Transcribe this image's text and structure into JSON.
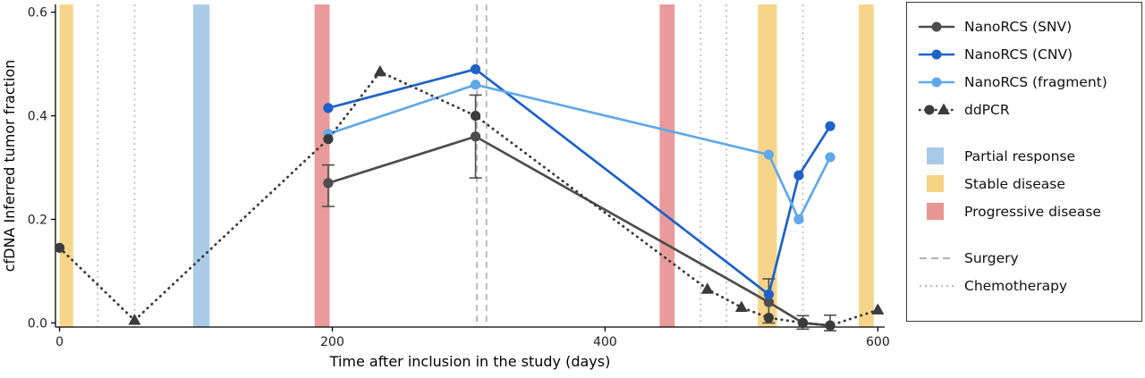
{
  "chart_data": {
    "type": "line",
    "title": "",
    "xlabel": "Time after inclusion in the study (days)",
    "ylabel": "cfDNA Inferred tumor fraction",
    "xlim": [
      -3,
      605
    ],
    "ylim": [
      -0.008,
      0.615
    ],
    "xticks": [
      0,
      200,
      400,
      600
    ],
    "xtick_labels": [
      "0",
      "200",
      "400",
      "600"
    ],
    "yticks": [
      0,
      0.2,
      0.4,
      0.6
    ],
    "ytick_labels": [
      "0.0",
      "0.2",
      "0.4",
      "0.6"
    ],
    "grid": false,
    "legend_position": "right",
    "series": [
      {
        "name": "NanoRCS (SNV)",
        "color": "#4d4d4d",
        "style": "solid",
        "marker": "circle",
        "points": [
          {
            "x": 197,
            "y": 0.27,
            "lo": 0.225,
            "hi": 0.305
          },
          {
            "x": 305,
            "y": 0.36,
            "lo": 0.28,
            "hi": 0.44
          },
          {
            "x": 520,
            "y": 0.04,
            "lo": 0.0,
            "hi": 0.085
          },
          {
            "x": 545,
            "y": 0.0,
            "lo": -0.012,
            "hi": 0.014
          },
          {
            "x": 565,
            "y": -0.005,
            "lo": -0.015,
            "hi": 0.015
          }
        ]
      },
      {
        "name": "NanoRCS (CNV)",
        "color": "#1e62c8",
        "style": "solid",
        "marker": "circle",
        "points": [
          {
            "x": 197,
            "y": 0.415
          },
          {
            "x": 305,
            "y": 0.49
          },
          {
            "x": 520,
            "y": 0.055
          },
          {
            "x": 542,
            "y": 0.285
          },
          {
            "x": 565,
            "y": 0.38
          }
        ]
      },
      {
        "name": "NanoRCS (fragment)",
        "color": "#5fa8ea",
        "style": "solid",
        "marker": "circle",
        "points": [
          {
            "x": 197,
            "y": 0.365
          },
          {
            "x": 305,
            "y": 0.46
          },
          {
            "x": 520,
            "y": 0.325
          },
          {
            "x": 542,
            "y": 0.2
          },
          {
            "x": 565,
            "y": 0.32
          }
        ]
      },
      {
        "name": "ddPCR",
        "color": "#3b3b3b",
        "style": "dotted",
        "marker": "circle",
        "points": [
          {
            "x": 0,
            "y": 0.145,
            "marker": "circle"
          },
          {
            "x": 55,
            "y": 0.005,
            "marker": "triangle"
          },
          {
            "x": 197,
            "y": 0.355,
            "marker": "circle"
          },
          {
            "x": 235,
            "y": 0.485,
            "marker": "triangle"
          },
          {
            "x": 305,
            "y": 0.4,
            "marker": "circle"
          },
          {
            "x": 475,
            "y": 0.065,
            "marker": "triangle"
          },
          {
            "x": 500,
            "y": 0.03,
            "marker": "triangle"
          },
          {
            "x": 520,
            "y": 0.01,
            "marker": "circle"
          },
          {
            "x": 545,
            "y": 0.0,
            "marker": "circle"
          },
          {
            "x": 565,
            "y": -0.005,
            "marker": "circle"
          },
          {
            "x": 600,
            "y": 0.025,
            "marker": "triangle"
          }
        ]
      }
    ],
    "bands": [
      {
        "label": "Stable disease",
        "x0": 0,
        "x1": 10,
        "color": "#f5d385"
      },
      {
        "label": "Partial response",
        "x0": 98,
        "x1": 110,
        "color": "#a6c9e8"
      },
      {
        "label": "Progressive disease",
        "x0": 187,
        "x1": 198,
        "color": "#e89595"
      },
      {
        "label": "Progressive disease",
        "x0": 440,
        "x1": 451,
        "color": "#e89595"
      },
      {
        "label": "Stable disease",
        "x0": 512,
        "x1": 526,
        "color": "#f5d385"
      },
      {
        "label": "Stable disease",
        "x0": 586,
        "x1": 597,
        "color": "#f5d385"
      }
    ],
    "vlines": [
      {
        "label": "Chemotherapy",
        "x": 28,
        "style": "dotted",
        "color": "#bdbdbd"
      },
      {
        "label": "Chemotherapy",
        "x": 55,
        "style": "dotted",
        "color": "#bdbdbd"
      },
      {
        "label": "Surgery",
        "x": 306,
        "style": "dashed",
        "color": "#b5b5b5"
      },
      {
        "label": "Surgery",
        "x": 313,
        "style": "dashed",
        "color": "#b5b5b5"
      },
      {
        "label": "Chemotherapy",
        "x": 470,
        "style": "dotted",
        "color": "#bdbdbd"
      },
      {
        "label": "Chemotherapy",
        "x": 489,
        "style": "dotted",
        "color": "#bdbdbd"
      },
      {
        "label": "Chemotherapy",
        "x": 545,
        "style": "dotted",
        "color": "#bdbdbd"
      }
    ]
  },
  "legend": {
    "series_items": [
      {
        "label": "NanoRCS (SNV)",
        "color": "#4d4d4d",
        "style": "solid",
        "marker": "circle"
      },
      {
        "label": "NanoRCS (CNV)",
        "color": "#1e62c8",
        "style": "solid",
        "marker": "circle"
      },
      {
        "label": "NanoRCS (fragment)",
        "color": "#5fa8ea",
        "style": "solid",
        "marker": "circle"
      },
      {
        "label": "ddPCR",
        "color": "#3b3b3b",
        "style": "dotted",
        "marker": "circle-triangle"
      }
    ],
    "band_items": [
      {
        "label": "Partial response",
        "color": "#a6c9e8"
      },
      {
        "label": "Stable disease",
        "color": "#f5d385"
      },
      {
        "label": "Progressive disease",
        "color": "#e89595"
      }
    ],
    "line_items": [
      {
        "label": "Surgery",
        "style": "dashed",
        "color": "#b5b5b5"
      },
      {
        "label": "Chemotherapy",
        "style": "dotted",
        "color": "#bdbdbd"
      }
    ]
  }
}
